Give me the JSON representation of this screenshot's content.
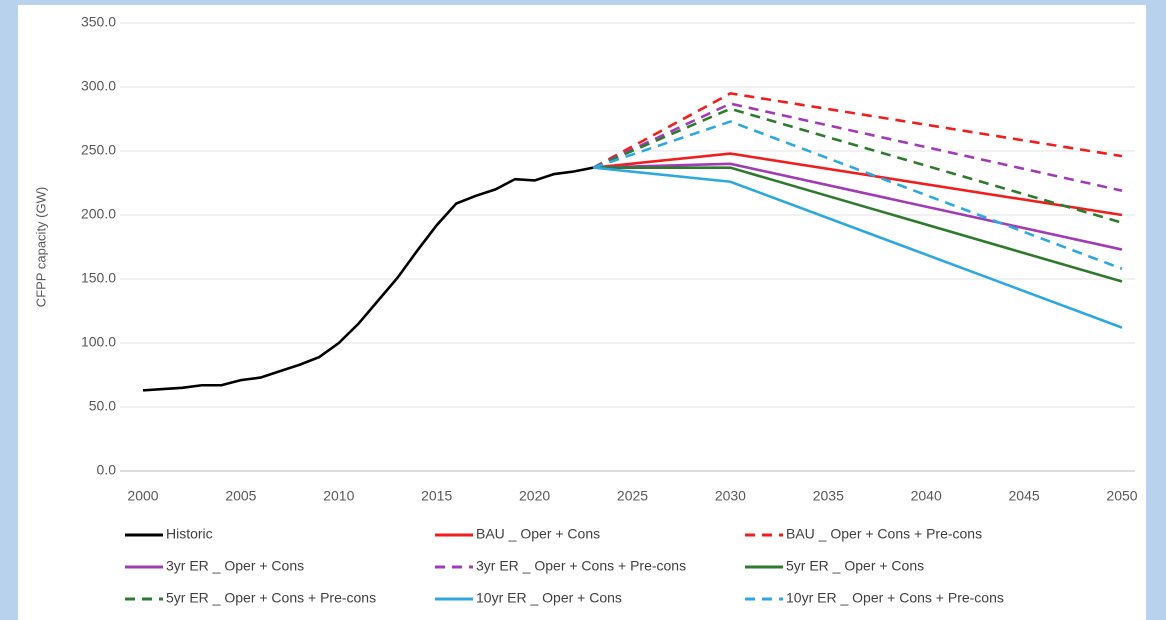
{
  "chart_data": {
    "type": "line",
    "ylabel": "CFPP capacity (GW)",
    "xlim": [
      2000,
      2050
    ],
    "xticks": [
      2000,
      2005,
      2010,
      2015,
      2020,
      2025,
      2030,
      2035,
      2040,
      2045,
      2050
    ],
    "ylim": [
      0,
      350
    ],
    "yticks": [
      {
        "value": 0,
        "label": "0.0"
      },
      {
        "value": 50,
        "label": "50.0"
      },
      {
        "value": 100,
        "label": "100.0"
      },
      {
        "value": 150,
        "label": "150.0"
      },
      {
        "value": 200,
        "label": "200.0"
      },
      {
        "value": 250,
        "label": "250.0"
      },
      {
        "value": 300,
        "label": "300.0"
      },
      {
        "value": 350,
        "label": "350.0"
      }
    ],
    "grid": true,
    "legend": "bottom",
    "series": [
      {
        "name": "Historic",
        "color": "#000000",
        "dashed": false,
        "x": [
          2000,
          2001,
          2002,
          2003,
          2004,
          2005,
          2006,
          2007,
          2008,
          2009,
          2010,
          2011,
          2012,
          2013,
          2014,
          2015,
          2016,
          2017,
          2018,
          2019,
          2020,
          2021,
          2022,
          2023
        ],
        "values": [
          63,
          64,
          65,
          67,
          67,
          71,
          73,
          78,
          83,
          89,
          100,
          115,
          133,
          151,
          172,
          192,
          209,
          215,
          220,
          228,
          227,
          232,
          234,
          237
        ]
      },
      {
        "name": "BAU _ Oper + Cons",
        "color": "#f01e1e",
        "dashed": false,
        "x": [
          2023,
          2030,
          2050
        ],
        "values": [
          237,
          248,
          200
        ]
      },
      {
        "name": "BAU _ Oper + Cons + Pre-cons",
        "color": "#f01e1e",
        "dashed": true,
        "x": [
          2023,
          2030,
          2050
        ],
        "values": [
          237,
          295,
          246
        ]
      },
      {
        "name": "3yr ER _ Oper + Cons",
        "color": "#a03cb4",
        "dashed": false,
        "x": [
          2023,
          2030,
          2050
        ],
        "values": [
          237,
          240,
          173
        ]
      },
      {
        "name": "3yr ER _ Oper + Cons + Pre-cons",
        "color": "#a03cb4",
        "dashed": true,
        "x": [
          2023,
          2030,
          2050
        ],
        "values": [
          237,
          287,
          219
        ]
      },
      {
        "name": "5yr ER _ Oper + Cons",
        "color": "#2f7a2f",
        "dashed": false,
        "x": [
          2023,
          2030,
          2050
        ],
        "values": [
          237,
          237,
          148
        ]
      },
      {
        "name": "5yr ER _ Oper + Cons + Pre-cons",
        "color": "#2f7a2f",
        "dashed": true,
        "x": [
          2023,
          2030,
          2050
        ],
        "values": [
          237,
          283,
          194
        ]
      },
      {
        "name": "10yr ER _ Oper + Cons",
        "color": "#2fa8e0",
        "dashed": false,
        "x": [
          2023,
          2030,
          2050
        ],
        "values": [
          237,
          226,
          112
        ]
      },
      {
        "name": "10yr ER _ Oper + Cons + Pre-cons",
        "color": "#2fa8e0",
        "dashed": true,
        "x": [
          2023,
          2030,
          2050
        ],
        "values": [
          237,
          273,
          158
        ]
      }
    ]
  }
}
